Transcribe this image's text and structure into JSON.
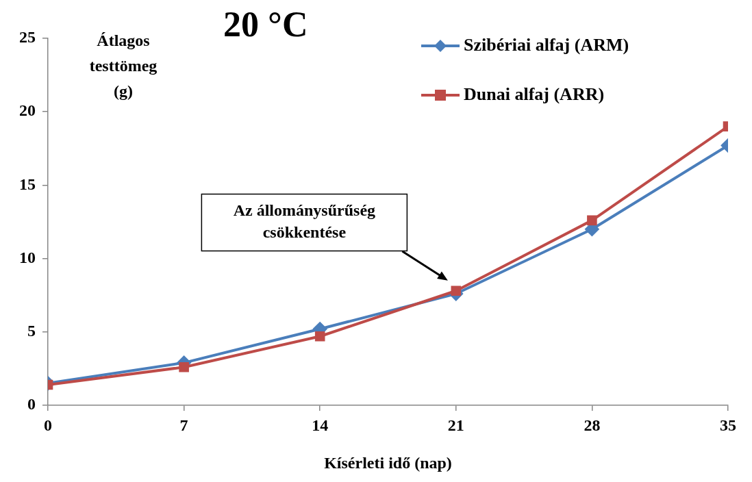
{
  "chart_data": {
    "type": "line",
    "title": "20 °C",
    "xlabel": "Kísérleti idő (nap)",
    "ylabel": "Átlagos testtömeg (g)",
    "x": [
      0,
      7,
      14,
      21,
      28,
      35
    ],
    "series": [
      {
        "name": "Szibériai alfaj (ARM)",
        "color": "#4a7ebb",
        "marker": "diamond",
        "values": [
          1.5,
          2.9,
          5.2,
          7.6,
          12.0,
          17.7
        ]
      },
      {
        "name": "Dunai alfaj (ARR)",
        "color": "#be4b48",
        "marker": "square",
        "values": [
          1.4,
          2.6,
          4.7,
          7.8,
          12.6,
          19.0
        ]
      }
    ],
    "xlim": [
      0,
      35
    ],
    "xticks": [
      0,
      7,
      14,
      21,
      28,
      35
    ],
    "ylim": [
      0,
      25
    ],
    "yticks": [
      0,
      5,
      10,
      15,
      20,
      25
    ],
    "grid": false,
    "legend": "top right",
    "line_style": "solid",
    "annotations": [
      "Az állománysűrűség csökkentése"
    ]
  }
}
